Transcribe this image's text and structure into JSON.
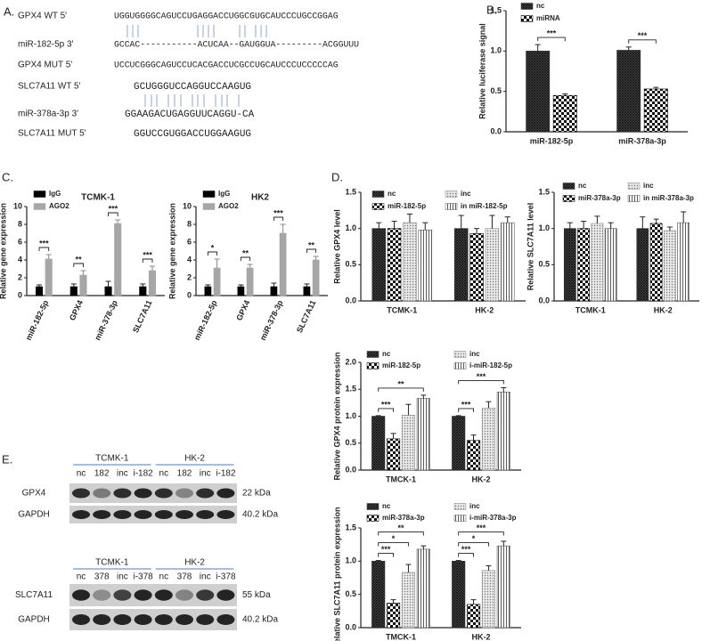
{
  "panels": [
    "A.",
    "B.",
    "C.",
    "D.",
    "E."
  ],
  "sequences": [
    {
      "label": "GPX4 WT  5'",
      "seq": "UGGUGGGGCAGUCCUGAGGACCUGGCGUGCAUCCCUGCCGGAG"
    },
    {
      "label": "miR-182-5p 3'",
      "seq": "GCCAC-----------ACUCAA--GAUGGUA---------ACGGUUU"
    },
    {
      "label": "GPX4  MUT 5'",
      "seq": "UCCUCGGGCAGUCCUCACGACCUCGCCUGCAUCCCUCCCCCAG"
    },
    {
      "label": "SLC7A11 WT 5'",
      "seq": "GCUGGGUCCAGGUCCAAGUG"
    },
    {
      "label": "miR-378a-3p  3'",
      "seq": "GGAAGACUGAGGUUCAGGU-CA"
    },
    {
      "label": "SLC7A11 MUT 5'",
      "seq": "GGUCCGUGGACCUGGAAGUG"
    }
  ],
  "blots": [
    {
      "groups": [
        "TCMK-1",
        "HK-2"
      ],
      "lanes": [
        "nc",
        "182",
        "inc",
        "i-182",
        "nc",
        "182",
        "inc",
        "i-182"
      ],
      "rows": [
        {
          "label": "GPX4",
          "size": "22 kDa"
        },
        {
          "label": "GAPDH",
          "size": "40.2 kDa"
        }
      ]
    },
    {
      "groups": [
        "TCMK-1",
        "HK-2"
      ],
      "lanes": [
        "nc",
        "378",
        "inc",
        "i-378",
        "nc",
        "378",
        "inc",
        "i-378"
      ],
      "rows": [
        {
          "label": "SLC7A11",
          "size": "55 kDa"
        },
        {
          "label": "GAPDH",
          "size": "40.2 kDa"
        }
      ]
    }
  ],
  "chart_data": [
    {
      "type": "bar",
      "ylabel": "Relative luciferase signal",
      "categories": [
        "miR-182-5p",
        "miR-378a-3p"
      ],
      "series": [
        {
          "name": "nc",
          "color": "#333333",
          "pattern": "crosshatch",
          "values": [
            1.0,
            1.01
          ],
          "errors": [
            0.08,
            0.04
          ]
        },
        {
          "name": "miRNA",
          "color": "#000000",
          "pattern": "checker",
          "values": [
            0.45,
            0.53
          ],
          "errors": [
            0.02,
            0.02
          ]
        }
      ],
      "ylim": [
        0,
        1.5
      ],
      "yticks": [
        {
          "value": 0,
          "label": "0.0"
        },
        0.5,
        {
          "value": 1,
          "label": "1.0"
        },
        1.5
      ],
      "significance": [
        {
          "label": "***",
          "category": "miR-182-5p",
          "between": [
            "nc",
            "miRNA"
          ]
        },
        {
          "label": "***",
          "category": "miR-378a-3p",
          "between": [
            "nc",
            "miRNA"
          ]
        }
      ]
    },
    {
      "type": "bar",
      "title": "TCMK-1",
      "ylabel": "Relative gene expression",
      "categories": [
        "miR-182-5p",
        "GPX4",
        "miR-378-3p",
        "SLC7A11"
      ],
      "series": [
        {
          "name": "IgG",
          "color": "#000000",
          "values": [
            1,
            1,
            1,
            1
          ],
          "errors": [
            0.2,
            0.3,
            0.6,
            0.3
          ]
        },
        {
          "name": "AGO2",
          "color": "#a6a6a6",
          "values": [
            4.1,
            2.3,
            8.1,
            2.8
          ],
          "errors": [
            0.5,
            0.5,
            0.4,
            0.5
          ]
        }
      ],
      "ylim": [
        0,
        10
      ],
      "yticks": [
        0,
        2,
        4,
        6,
        8,
        10
      ],
      "significance": [
        {
          "label": "***",
          "category": "miR-182-5p",
          "between": [
            "IgG",
            "AGO2"
          ]
        },
        {
          "label": "**",
          "category": "GPX4",
          "between": [
            "IgG",
            "AGO2"
          ]
        },
        {
          "label": "***",
          "category": "miR-378-3p",
          "between": [
            "IgG",
            "AGO2"
          ]
        },
        {
          "label": "***",
          "category": "SLC7A11",
          "between": [
            "IgG",
            "AGO2"
          ]
        }
      ]
    },
    {
      "type": "bar",
      "title": "HK2",
      "ylabel": "Relative gene expression",
      "categories": [
        "miR-182-5p",
        "GPX4",
        "miR-378-3p",
        "SLC7A11"
      ],
      "series": [
        {
          "name": "IgG",
          "color": "#000000",
          "values": [
            1,
            1,
            1,
            1
          ],
          "errors": [
            0.2,
            0.2,
            0.4,
            0.3
          ]
        },
        {
          "name": "AGO2",
          "color": "#a6a6a6",
          "values": [
            3.1,
            3.1,
            7.0,
            4.0
          ],
          "errors": [
            1.0,
            0.4,
            1.0,
            0.4
          ]
        }
      ],
      "ylim": [
        0,
        10
      ],
      "yticks": [
        0,
        2,
        4,
        6,
        8,
        10
      ],
      "significance": [
        {
          "label": "*",
          "category": "miR-182-5p",
          "between": [
            "IgG",
            "AGO2"
          ]
        },
        {
          "label": "**",
          "category": "GPX4",
          "between": [
            "IgG",
            "AGO2"
          ]
        },
        {
          "label": "***",
          "category": "miR-378-3p",
          "between": [
            "IgG",
            "AGO2"
          ]
        },
        {
          "label": "**",
          "category": "SLC7A11",
          "between": [
            "IgG",
            "AGO2"
          ]
        }
      ]
    },
    {
      "type": "bar",
      "ylabel": "Relative GPX4 level",
      "categories": [
        "TCMK-1",
        "HK-2"
      ],
      "series": [
        {
          "name": "nc",
          "color": "#333333",
          "pattern": "crosshatch",
          "values": [
            1.0,
            1.0
          ],
          "errors": [
            0.08,
            0.18
          ]
        },
        {
          "name": "miR-182-5p",
          "color": "#000000",
          "pattern": "checker",
          "values": [
            1.0,
            0.93
          ],
          "errors": [
            0.1,
            0.07
          ]
        },
        {
          "name": "inc",
          "color": "#888888",
          "pattern": "dots",
          "values": [
            1.08,
            1.0
          ],
          "errors": [
            0.12,
            0.18
          ]
        },
        {
          "name": "in miR-182-5p",
          "color": "#555555",
          "pattern": "vertical",
          "values": [
            0.98,
            1.08
          ],
          "errors": [
            0.1,
            0.08
          ]
        }
      ],
      "ylim": [
        0,
        1.5
      ],
      "yticks": [
        {
          "value": 0,
          "label": "0.0"
        },
        0.5,
        {
          "value": 1,
          "label": "1.0"
        },
        1.5
      ]
    },
    {
      "type": "bar",
      "ylabel": "Relative SLC7A11 level",
      "categories": [
        "TCMK-1",
        "HK-2"
      ],
      "series": [
        {
          "name": "nc",
          "color": "#333333",
          "pattern": "crosshatch",
          "values": [
            1.0,
            1.0
          ],
          "errors": [
            0.08,
            0.16
          ]
        },
        {
          "name": "miR-378a-3p",
          "color": "#000000",
          "pattern": "checker",
          "values": [
            1.0,
            1.07
          ],
          "errors": [
            0.1,
            0.06
          ]
        },
        {
          "name": "inc",
          "color": "#888888",
          "pattern": "dots",
          "values": [
            1.07,
            0.97
          ],
          "errors": [
            0.1,
            0.05
          ]
        },
        {
          "name": "in miR-378a-3p",
          "color": "#555555",
          "pattern": "vertical",
          "values": [
            1.0,
            1.08
          ],
          "errors": [
            0.08,
            0.15
          ]
        }
      ],
      "ylim": [
        0,
        1.5
      ],
      "yticks": [
        {
          "value": 0,
          "label": "0.0"
        },
        0.5,
        {
          "value": 1,
          "label": "1.0"
        },
        1.5
      ]
    },
    {
      "type": "bar",
      "ylabel": "Relative GPX4 protein expression",
      "categories": [
        "TMCK-1",
        "HK-2"
      ],
      "series": [
        {
          "name": "nc",
          "color": "#333333",
          "pattern": "crosshatch",
          "values": [
            1.0,
            1.0
          ],
          "errors": [
            0.01,
            0.01
          ]
        },
        {
          "name": "miR-182-5p",
          "color": "#000000",
          "pattern": "checker",
          "values": [
            0.58,
            0.55
          ],
          "errors": [
            0.1,
            0.1
          ]
        },
        {
          "name": "inc",
          "color": "#888888",
          "pattern": "dots",
          "values": [
            1.02,
            1.15
          ],
          "errors": [
            0.2,
            0.12
          ]
        },
        {
          "name": "i-miR-182-5p",
          "color": "#555555",
          "pattern": "vertical",
          "values": [
            1.33,
            1.45
          ],
          "errors": [
            0.06,
            0.08
          ]
        }
      ],
      "ylim": [
        0,
        2
      ],
      "yticks": [
        {
          "value": 0,
          "label": "0.0"
        },
        0.5,
        {
          "value": 1,
          "label": "1.0"
        },
        1.5,
        {
          "value": 2,
          "label": "2.0"
        }
      ],
      "significance": [
        {
          "label": "***",
          "category": "TMCK-1",
          "between": [
            "nc",
            "miR-182-5p"
          ]
        },
        {
          "label": "**",
          "category": "TMCK-1",
          "between": [
            "nc",
            "i-miR-182-5p"
          ]
        },
        {
          "label": "***",
          "category": "HK-2",
          "between": [
            "nc",
            "miR-182-5p"
          ]
        },
        {
          "label": "***",
          "category": "HK-2",
          "between": [
            "nc",
            "i-miR-182-5p"
          ]
        }
      ]
    },
    {
      "type": "bar",
      "ylabel": "Relative SLC7A11 protein expression",
      "categories": [
        "TMCK-1",
        "HK-2"
      ],
      "series": [
        {
          "name": "nc",
          "color": "#333333",
          "pattern": "crosshatch",
          "values": [
            1.0,
            1.0
          ],
          "errors": [
            0.01,
            0.01
          ]
        },
        {
          "name": "miR-378a-3p",
          "color": "#000000",
          "pattern": "checker",
          "values": [
            0.37,
            0.35
          ],
          "errors": [
            0.05,
            0.07
          ]
        },
        {
          "name": "inc",
          "color": "#888888",
          "pattern": "dots",
          "values": [
            0.83,
            0.86
          ],
          "errors": [
            0.12,
            0.07
          ]
        },
        {
          "name": "i-miR-378a-3p",
          "color": "#555555",
          "pattern": "vertical",
          "values": [
            1.18,
            1.23
          ],
          "errors": [
            0.05,
            0.07
          ]
        }
      ],
      "ylim": [
        0,
        1.5
      ],
      "yticks": [
        {
          "value": 0,
          "label": "0.0"
        },
        0.5,
        {
          "value": 1,
          "label": "1.0"
        },
        1.5
      ],
      "significance": [
        {
          "label": "***",
          "category": "TMCK-1",
          "between": [
            "nc",
            "miR-378a-3p"
          ]
        },
        {
          "label": "*",
          "category": "TMCK-1",
          "between": [
            "nc",
            "inc"
          ]
        },
        {
          "label": "**",
          "category": "TMCK-1",
          "between": [
            "nc",
            "i-miR-378a-3p"
          ]
        },
        {
          "label": "***",
          "category": "HK-2",
          "between": [
            "nc",
            "miR-378a-3p"
          ]
        },
        {
          "label": "*",
          "category": "HK-2",
          "between": [
            "nc",
            "inc"
          ]
        },
        {
          "label": "***",
          "category": "HK-2",
          "between": [
            "nc",
            "i-miR-378a-3p"
          ]
        }
      ]
    }
  ]
}
